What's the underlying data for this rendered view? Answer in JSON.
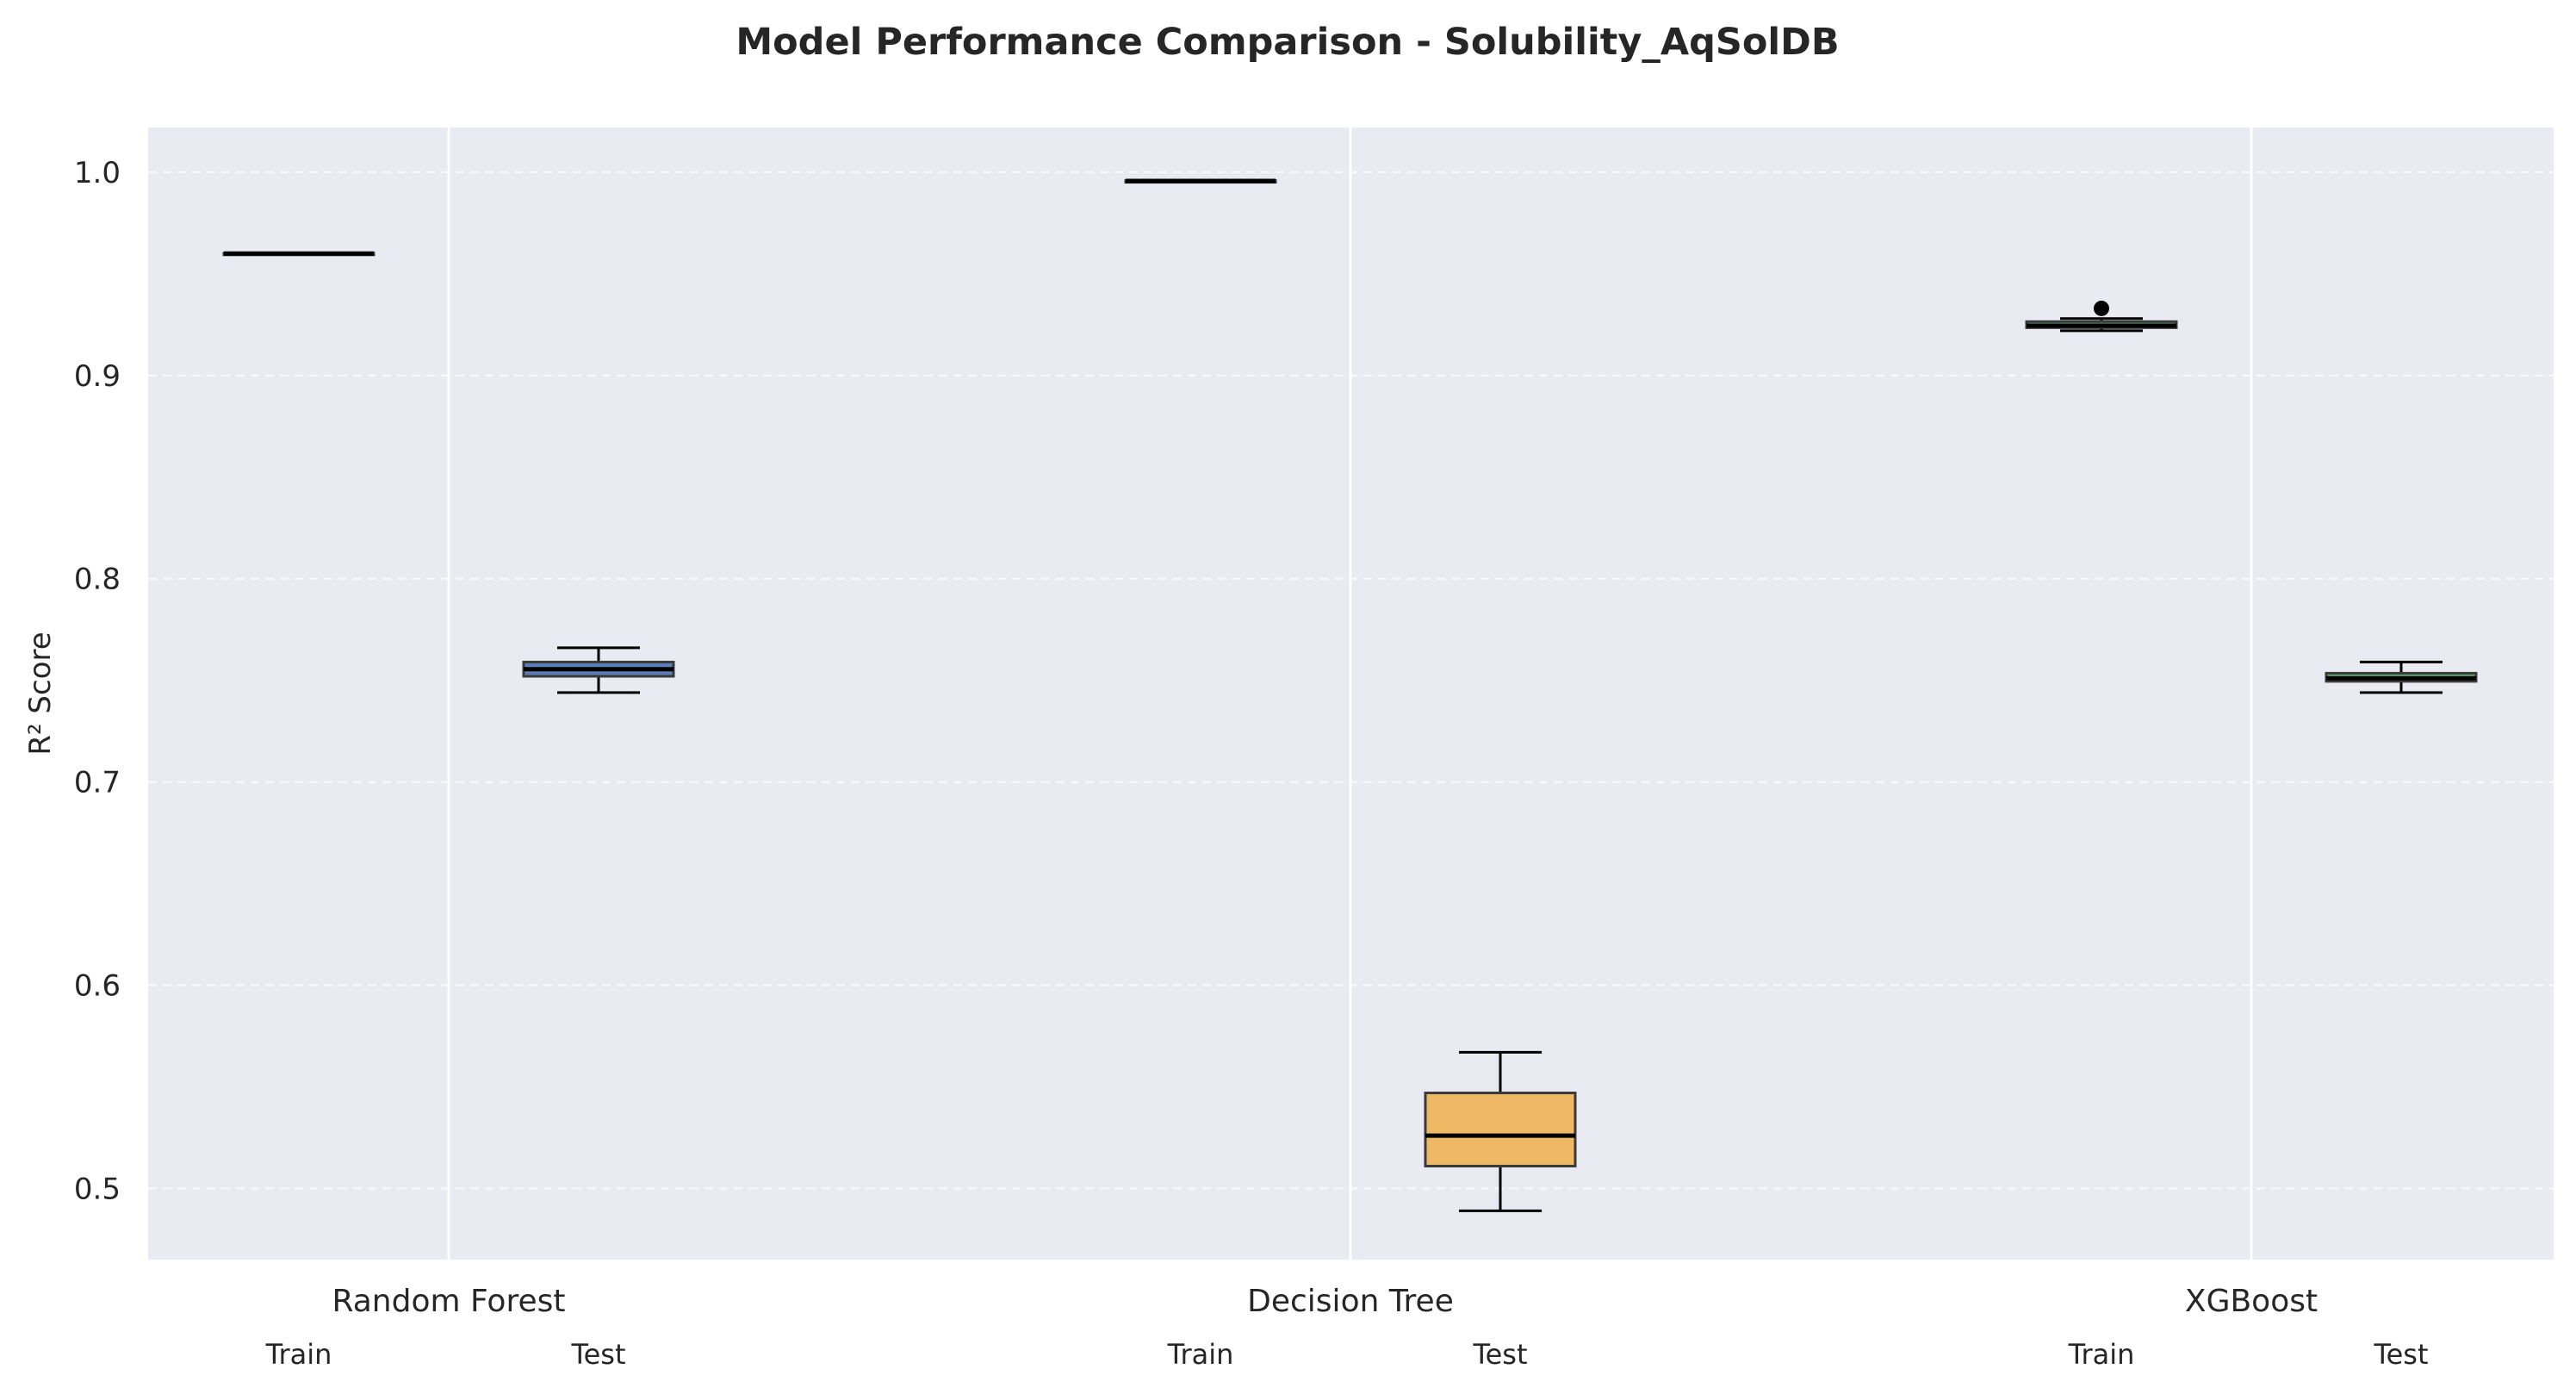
{
  "chart_data": {
    "type": "box",
    "title": "Model Performance Comparison - Solubility_AqSolDB",
    "xlabel": "",
    "ylabel": "R² Score",
    "ylim": [
      0.465,
      1.022
    ],
    "yticks": [
      "0.5",
      "0.6",
      "0.7",
      "0.8",
      "0.9",
      "1.0"
    ],
    "ytick_values": [
      0.5,
      0.6,
      0.7,
      0.8,
      0.9,
      1.0
    ],
    "grid": "horizontal dashed",
    "models": [
      "Random Forest",
      "Decision Tree",
      "XGBoost"
    ],
    "splits": [
      "Train",
      "Test"
    ],
    "boxes": [
      {
        "model": "Random Forest",
        "split": "Train",
        "color": "#4c72b0",
        "whislo": 0.9598,
        "q1": 0.9598,
        "med": 0.96,
        "q3": 0.9602,
        "whishi": 0.9602,
        "fliers": []
      },
      {
        "model": "Random Forest",
        "split": "Test",
        "color": "#4c72b0",
        "whislo": 0.744,
        "q1": 0.752,
        "med": 0.7555,
        "q3": 0.759,
        "whishi": 0.766,
        "fliers": []
      },
      {
        "model": "Decision Tree",
        "split": "Train",
        "color": "#dd8452",
        "whislo": 0.9955,
        "q1": 0.9955,
        "med": 0.9957,
        "q3": 0.9959,
        "whishi": 0.9959,
        "fliers": []
      },
      {
        "model": "Decision Tree",
        "split": "Test",
        "color": "#f0b354",
        "whislo": 0.489,
        "q1": 0.511,
        "med": 0.526,
        "q3": 0.547,
        "whishi": 0.567,
        "fliers": []
      },
      {
        "model": "XGBoost",
        "split": "Train",
        "color": "#55a868",
        "whislo": 0.922,
        "q1": 0.9235,
        "med": 0.9245,
        "q3": 0.9265,
        "whishi": 0.928,
        "fliers": [
          0.933
        ]
      },
      {
        "model": "XGBoost",
        "split": "Test",
        "color": "#55a868",
        "whislo": 0.744,
        "q1": 0.7495,
        "med": 0.751,
        "q3": 0.7535,
        "whishi": 0.759,
        "fliers": []
      }
    ],
    "colors": {
      "background": "#eaeaf2",
      "grid": "#ffffff",
      "median": "#000000",
      "whisker": "#000000",
      "box_edge": "#3a3a3a"
    }
  }
}
